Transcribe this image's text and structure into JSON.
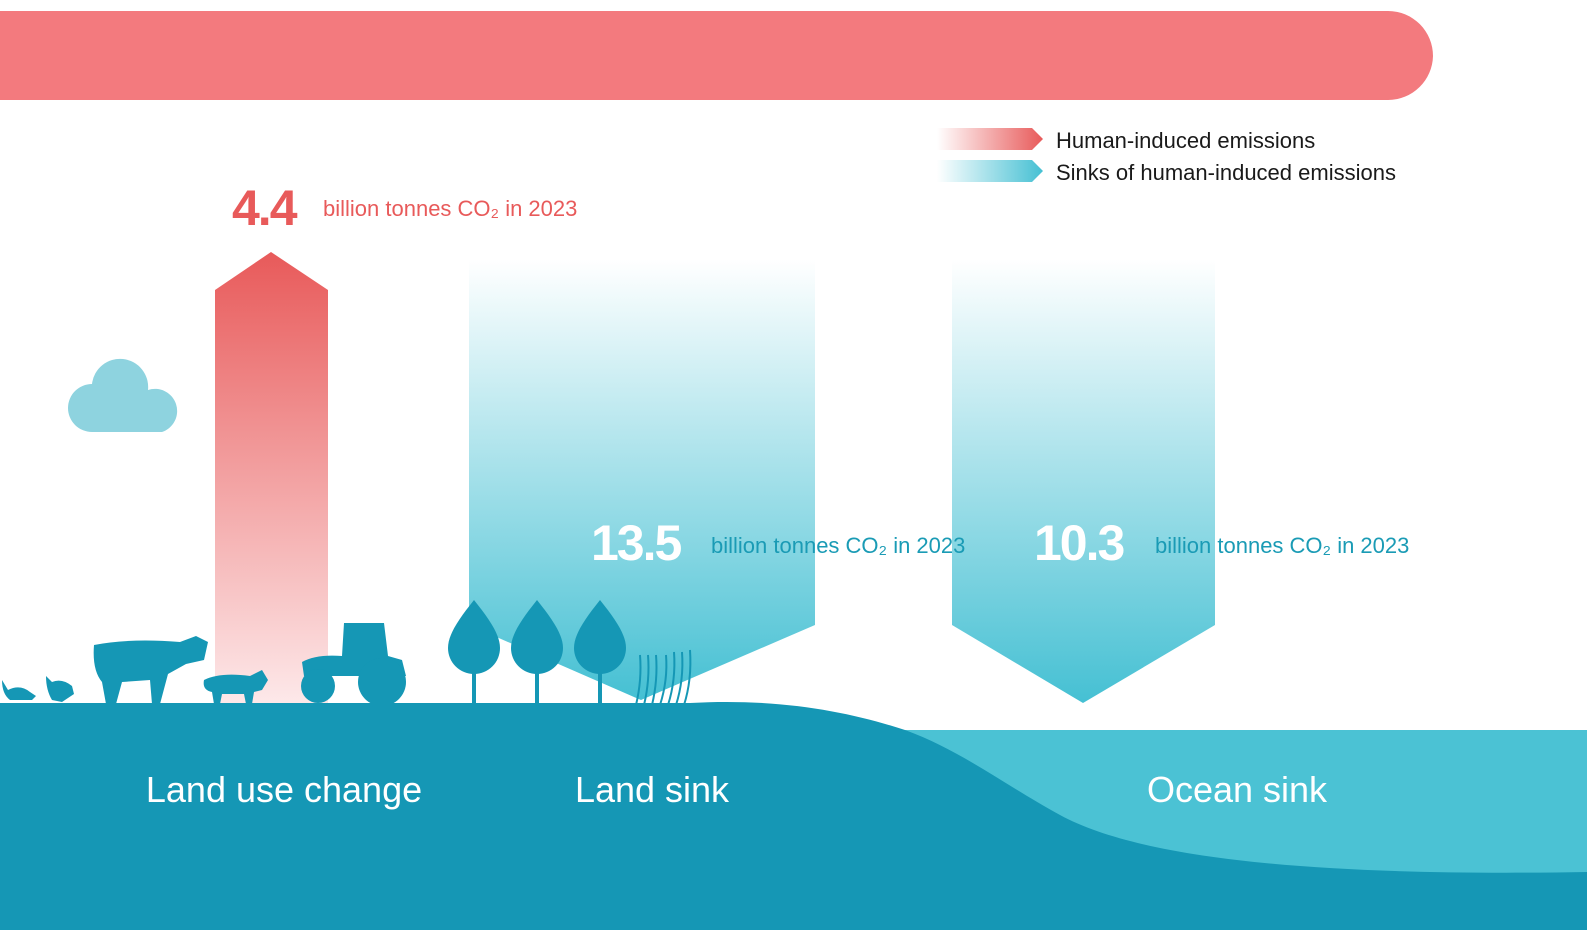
{
  "legend": {
    "items": [
      "Human-induced emissions",
      "Sinks of human-induced emissions"
    ]
  },
  "flows": [
    {
      "value": "4.4",
      "unit": "billion tonnes CO₂ in 2023",
      "label": "Land use change"
    },
    {
      "value": "13.5",
      "unit": "billion tonnes CO₂ in 2023",
      "label": "Land sink"
    },
    {
      "value": "10.3",
      "unit": "billion tonnes CO₂ in 2023",
      "label": "Ocean sink"
    }
  ]
}
